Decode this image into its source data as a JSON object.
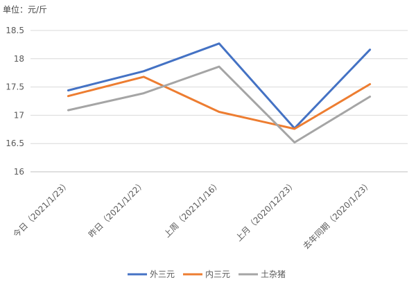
{
  "chart_data": {
    "type": "line",
    "unit_label": "单位：元/斤",
    "categories": [
      "今日（2021/1/23）",
      "昨日（2021/1/22）",
      "上周（2021/1/16）",
      "上月（2020/12/23）",
      "去年同期（2020/1/23）"
    ],
    "series": [
      {
        "name": "外三元",
        "color": "#4472C4",
        "values": [
          17.44,
          17.78,
          18.27,
          16.77,
          18.16
        ]
      },
      {
        "name": "内三元",
        "color": "#ED7D31",
        "values": [
          17.34,
          17.68,
          17.06,
          16.76,
          17.55
        ]
      },
      {
        "name": "土杂猪",
        "color": "#A5A5A5",
        "values": [
          17.09,
          17.39,
          17.86,
          16.52,
          17.33
        ]
      }
    ],
    "yticks": [
      16,
      16.5,
      17,
      17.5,
      18,
      18.5
    ],
    "ylim": [
      16,
      18.5
    ],
    "grid": true,
    "legend_position": "bottom"
  }
}
